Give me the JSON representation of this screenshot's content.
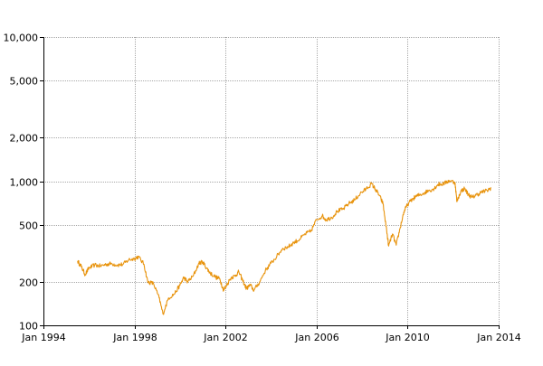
{
  "chart_data": {
    "type": "line",
    "title": "",
    "xlabel": "",
    "ylabel": "",
    "x_axis": {
      "type": "date",
      "range": [
        "1994-01",
        "2014-01"
      ],
      "ticks": [
        "1994-01",
        "1998-01",
        "2002-01",
        "2006-01",
        "2010-01",
        "2014-01"
      ],
      "tick_labels": [
        "Jan 1994",
        "Jan 1998",
        "Jan 2002",
        "Jan 2006",
        "Jan 2010",
        "Jan 2014"
      ]
    },
    "y_axis": {
      "scale": "log",
      "range": [
        100,
        10000
      ],
      "ticks": [
        100,
        200,
        500,
        1000,
        2000,
        5000,
        10000
      ],
      "tick_labels": [
        "100",
        "200",
        "500",
        "1,000",
        "2,000",
        "5,000",
        "10,000"
      ]
    },
    "grid": true,
    "legend": "none",
    "series": [
      {
        "color": "#e8930c",
        "points": [
          [
            "1995-07",
            280
          ],
          [
            "1995-09",
            255
          ],
          [
            "1995-11",
            225
          ],
          [
            "1996-01",
            250
          ],
          [
            "1996-04",
            262
          ],
          [
            "1996-07",
            258
          ],
          [
            "1996-10",
            265
          ],
          [
            "1997-01",
            268
          ],
          [
            "1997-04",
            262
          ],
          [
            "1997-07",
            265
          ],
          [
            "1997-10",
            285
          ],
          [
            "1998-01",
            290
          ],
          [
            "1998-03",
            300
          ],
          [
            "1998-06",
            265
          ],
          [
            "1998-08",
            200
          ],
          [
            "1998-11",
            195
          ],
          [
            "1999-02",
            155
          ],
          [
            "1999-04",
            120
          ],
          [
            "1999-07",
            155
          ],
          [
            "1999-10",
            165
          ],
          [
            "2000-01",
            190
          ],
          [
            "2000-03",
            215
          ],
          [
            "2000-05",
            200
          ],
          [
            "2000-08",
            220
          ],
          [
            "2000-11",
            270
          ],
          [
            "2001-01",
            275
          ],
          [
            "2001-03",
            250
          ],
          [
            "2001-05",
            230
          ],
          [
            "2001-08",
            215
          ],
          [
            "2001-10",
            210
          ],
          [
            "2001-12",
            175
          ],
          [
            "2002-01",
            185
          ],
          [
            "2002-04",
            215
          ],
          [
            "2002-06",
            220
          ],
          [
            "2002-08",
            235
          ],
          [
            "2002-10",
            205
          ],
          [
            "2002-12",
            180
          ],
          [
            "2003-02",
            190
          ],
          [
            "2003-04",
            175
          ],
          [
            "2003-07",
            200
          ],
          [
            "2003-10",
            240
          ],
          [
            "2004-01",
            270
          ],
          [
            "2004-04",
            300
          ],
          [
            "2004-07",
            340
          ],
          [
            "2004-10",
            350
          ],
          [
            "2005-01",
            375
          ],
          [
            "2005-04",
            395
          ],
          [
            "2005-07",
            430
          ],
          [
            "2005-10",
            450
          ],
          [
            "2006-01",
            540
          ],
          [
            "2006-04",
            575
          ],
          [
            "2006-06",
            540
          ],
          [
            "2006-09",
            560
          ],
          [
            "2006-12",
            620
          ],
          [
            "2007-03",
            640
          ],
          [
            "2007-06",
            700
          ],
          [
            "2007-09",
            740
          ],
          [
            "2007-12",
            820
          ],
          [
            "2008-03",
            880
          ],
          [
            "2008-06",
            960
          ],
          [
            "2008-08",
            880
          ],
          [
            "2008-10",
            800
          ],
          [
            "2008-12",
            700
          ],
          [
            "2009-02",
            450
          ],
          [
            "2009-03",
            355
          ],
          [
            "2009-05",
            430
          ],
          [
            "2009-07",
            360
          ],
          [
            "2009-09",
            470
          ],
          [
            "2009-11",
            610
          ],
          [
            "2010-01",
            690
          ],
          [
            "2010-04",
            760
          ],
          [
            "2010-06",
            790
          ],
          [
            "2010-09",
            820
          ],
          [
            "2010-12",
            860
          ],
          [
            "2011-03",
            890
          ],
          [
            "2011-05",
            950
          ],
          [
            "2011-08",
            960
          ],
          [
            "2011-11",
            1010
          ],
          [
            "2012-02",
            980
          ],
          [
            "2012-03",
            720
          ],
          [
            "2012-05",
            850
          ],
          [
            "2012-07",
            890
          ],
          [
            "2012-09",
            810
          ],
          [
            "2012-11",
            770
          ],
          [
            "2013-01",
            800
          ],
          [
            "2013-04",
            840
          ],
          [
            "2013-07",
            860
          ],
          [
            "2013-09",
            900
          ]
        ]
      }
    ]
  }
}
